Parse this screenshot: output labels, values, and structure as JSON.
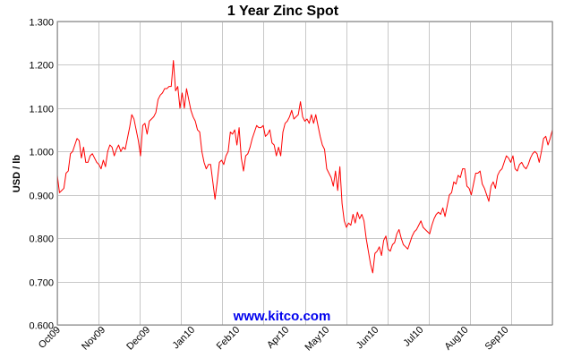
{
  "chart_data": {
    "type": "line",
    "title": "1 Year Zinc Spot",
    "ylabel": "USD / lb",
    "xlabel": "",
    "ylim": [
      0.6,
      1.3
    ],
    "y_ticks": [
      "0.600",
      "0.700",
      "0.800",
      "0.900",
      "1.000",
      "1.100",
      "1.200",
      "1.300"
    ],
    "x_ticks": [
      "Oct09",
      "Nov09",
      "Dec09",
      "Jan10",
      "Feb10",
      "Apr10",
      "May10",
      "Jun10",
      "Jul10",
      "Aug10",
      "Sep10"
    ],
    "grid": true,
    "line_color": "#ff0000",
    "watermark": "www.kitco.com",
    "series": [
      {
        "values": [
          0.945,
          0.905,
          0.91,
          0.915,
          0.95,
          0.955,
          0.995,
          1.0,
          1.015,
          1.03,
          1.025,
          0.985,
          1.01,
          0.975,
          0.975,
          0.99,
          0.995,
          0.985,
          0.975,
          0.97,
          0.96,
          0.98,
          0.965,
          1.0,
          1.015,
          1.01,
          0.99,
          1.005,
          1.015,
          1.0,
          1.01,
          1.005,
          1.03,
          1.055,
          1.085,
          1.075,
          1.05,
          1.025,
          0.99,
          1.06,
          1.065,
          1.04,
          1.07,
          1.075,
          1.08,
          1.09,
          1.12,
          1.13,
          1.135,
          1.145,
          1.145,
          1.15,
          1.15,
          1.21,
          1.14,
          1.15,
          1.1,
          1.135,
          1.1,
          1.145,
          1.12,
          1.095,
          1.08,
          1.07,
          1.05,
          1.045,
          1.0,
          0.975,
          0.96,
          0.97,
          0.97,
          0.93,
          0.89,
          0.93,
          0.975,
          0.98,
          0.97,
          0.99,
          1.0,
          1.045,
          1.04,
          1.05,
          1.015,
          1.055,
          0.985,
          0.955,
          0.99,
          0.995,
          1.01,
          1.03,
          1.045,
          1.06,
          1.055,
          1.055,
          1.06,
          1.035,
          1.04,
          1.05,
          1.02,
          1.015,
          0.99,
          1.01,
          0.99,
          1.045,
          1.065,
          1.07,
          1.08,
          1.095,
          1.075,
          1.08,
          1.085,
          1.115,
          1.08,
          1.07,
          1.075,
          1.065,
          1.085,
          1.065,
          1.085,
          1.06,
          1.035,
          1.015,
          1.005,
          0.96,
          0.95,
          0.94,
          0.92,
          0.955,
          0.91,
          0.965,
          0.88,
          0.84,
          0.825,
          0.835,
          0.83,
          0.855,
          0.835,
          0.86,
          0.845,
          0.855,
          0.84,
          0.8,
          0.77,
          0.74,
          0.72,
          0.765,
          0.77,
          0.78,
          0.76,
          0.795,
          0.805,
          0.775,
          0.77,
          0.785,
          0.79,
          0.81,
          0.82,
          0.8,
          0.785,
          0.78,
          0.775,
          0.79,
          0.805,
          0.815,
          0.82,
          0.83,
          0.84,
          0.825,
          0.82,
          0.815,
          0.81,
          0.83,
          0.845,
          0.855,
          0.86,
          0.855,
          0.87,
          0.85,
          0.875,
          0.9,
          0.905,
          0.93,
          0.925,
          0.945,
          0.94,
          0.96,
          0.96,
          0.92,
          0.915,
          0.9,
          0.925,
          0.95,
          0.95,
          0.955,
          0.925,
          0.915,
          0.9,
          0.885,
          0.92,
          0.93,
          0.915,
          0.945,
          0.955,
          0.96,
          0.975,
          0.99,
          0.985,
          0.975,
          0.99,
          0.96,
          0.955,
          0.97,
          0.975,
          0.965,
          0.96,
          0.97,
          0.985,
          0.995,
          1.0,
          0.995,
          0.975,
          1.0,
          1.03,
          1.035,
          1.015,
          1.03,
          1.05
        ]
      }
    ]
  }
}
